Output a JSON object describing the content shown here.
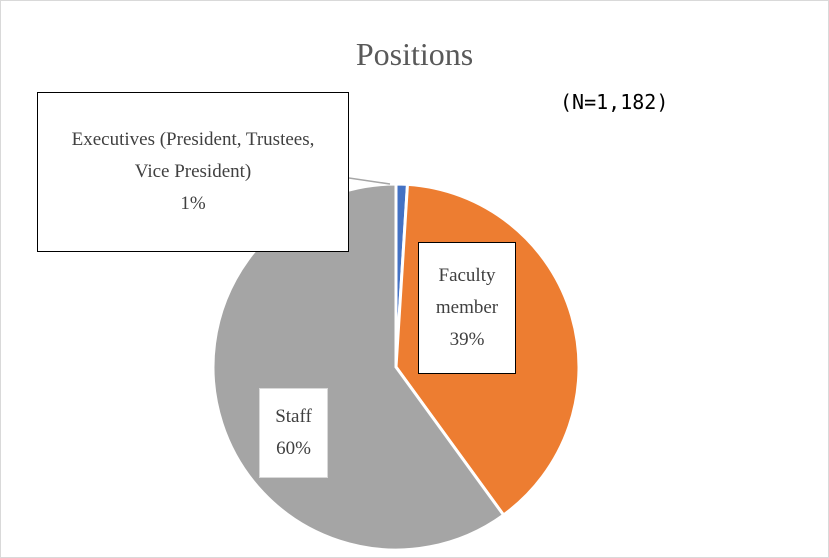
{
  "chart_data": {
    "type": "pie",
    "title": "Positions",
    "annotation": "(N=1,182)",
    "categories": [
      "Executives (President, Trustees, Vice President)",
      "Faculty member",
      "Staff"
    ],
    "values": [
      1,
      39,
      60
    ],
    "value_labels": [
      "1%",
      "39%",
      "60%"
    ],
    "colors": [
      "#4472c4",
      "#ed7d31",
      "#a5a5a5"
    ]
  }
}
